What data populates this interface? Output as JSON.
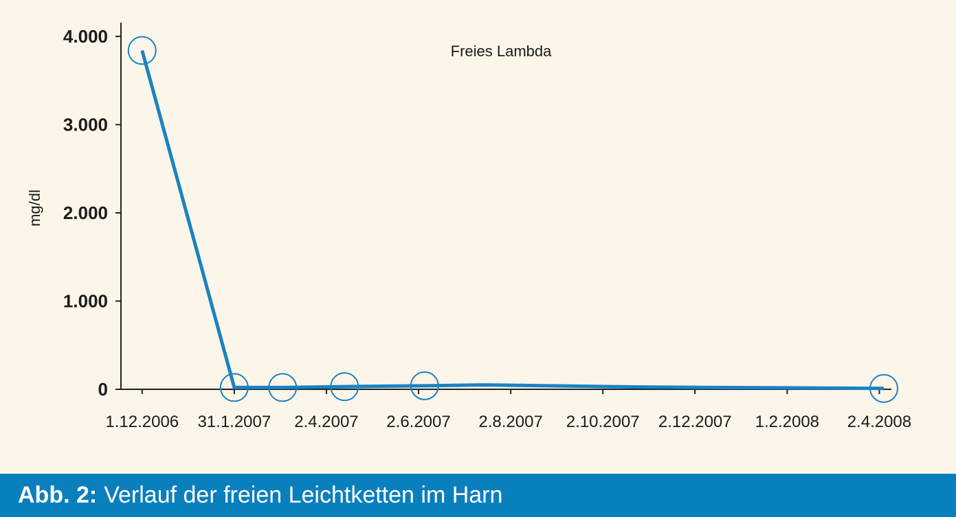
{
  "chart_data": {
    "type": "line",
    "series_label": "Freies Lambda",
    "ylabel": "mg/dl",
    "ylim": [
      0,
      4000
    ],
    "y_ticks": [
      {
        "value": 0,
        "label": "0"
      },
      {
        "value": 1000,
        "label": "1.000"
      },
      {
        "value": 2000,
        "label": "2.000"
      },
      {
        "value": 3000,
        "label": "3.000"
      },
      {
        "value": 4000,
        "label": "4.000"
      }
    ],
    "x_ticks": [
      "1.12.2006",
      "31.1.2007",
      "2.4.2007",
      "2.6.2007",
      "2.8.2007",
      "2.10.2007",
      "2.12.2007",
      "1.2.2008",
      "2.4.2008"
    ],
    "xlim": [
      "2006-11-17",
      "2008-04-10"
    ],
    "points": [
      {
        "date": "2006-12-01",
        "value": 3840,
        "marker": true
      },
      {
        "date": "2007-01-31",
        "value": 20,
        "marker": true
      },
      {
        "date": "2007-03-04",
        "value": 20,
        "marker": true
      },
      {
        "date": "2007-04-14",
        "value": 30,
        "marker": true
      },
      {
        "date": "2007-06-06",
        "value": 40,
        "marker": true
      },
      {
        "date": "2007-07-15",
        "value": 50,
        "marker": false
      },
      {
        "date": "2007-11-01",
        "value": 25,
        "marker": false
      },
      {
        "date": "2008-04-05",
        "value": 10,
        "marker": true
      }
    ],
    "colors": {
      "line": "#1a82c2",
      "axis": "#222222"
    },
    "grid": false
  },
  "caption": {
    "lead": "Abb. 2:",
    "text": "Verlauf der freien Leichtketten im Harn"
  }
}
